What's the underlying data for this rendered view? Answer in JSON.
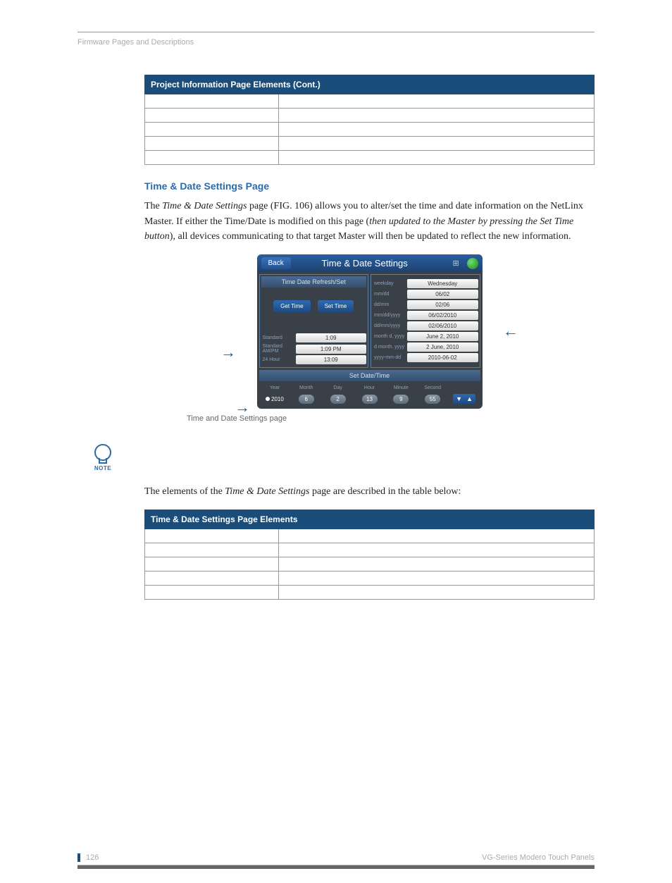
{
  "header": {
    "breadcrumb": "Firmware Pages and Descriptions"
  },
  "table1": {
    "title": "Project Information Page Elements (Cont.)",
    "rows": 5
  },
  "section": {
    "heading": "Time & Date Settings Page",
    "para_pre": "The ",
    "para_em1": "Time & Date Settings",
    "para_mid1": " page (FIG. 106) allows you to alter/set the time and date information on the NetLinx Master. If either the Time/Date is modified on this page (",
    "para_em2": "then updated to the Master by pressing the Set Time button",
    "para_mid2": "), all devices communicating to that target Master will then be updated to reflect the new information."
  },
  "panel": {
    "back": "Back",
    "title": "Time & Date Settings",
    "refresh_hdr": "Time Date Refresh/Set",
    "get_time": "Get Time",
    "set_time": "Set Time",
    "left_rows": [
      {
        "lbl": "Standard",
        "val": "1:09"
      },
      {
        "lbl": "Standard AM/PM",
        "val": "1:09 PM"
      },
      {
        "lbl": "24 Hour",
        "val": "13:09"
      }
    ],
    "right_rows": [
      {
        "lbl": "weekday",
        "val": "Wednesday"
      },
      {
        "lbl": "mm/dd",
        "val": "06/02"
      },
      {
        "lbl": "dd/mm",
        "val": "02/06"
      },
      {
        "lbl": "mm/dd/yyyy",
        "val": "06/02/2010"
      },
      {
        "lbl": "dd/mm/yyyy",
        "val": "02/06/2010"
      },
      {
        "lbl": "month d, yyyy",
        "val": "June 2, 2010"
      },
      {
        "lbl": "d month, yyyy",
        "val": "2 June, 2010"
      },
      {
        "lbl": "yyyy-mm-dd",
        "val": "2010-06-02"
      }
    ],
    "set_hdr": "Set Date/Time",
    "set_cells": [
      {
        "lbl": "Year",
        "val": "2010",
        "radio": true
      },
      {
        "lbl": "Month",
        "val": "6"
      },
      {
        "lbl": "Day",
        "val": "2"
      },
      {
        "lbl": "Hour",
        "val": "13"
      },
      {
        "lbl": "Minute",
        "val": "9"
      },
      {
        "lbl": "Second",
        "val": "55"
      }
    ]
  },
  "caption": "Time and Date Settings page",
  "note_label": "NOTE",
  "para2_pre": "The elements of the ",
  "para2_em": "Time & Date Settings",
  "para2_post": " page are described in the table below:",
  "table2": {
    "title": "Time & Date Settings Page Elements"
  },
  "footer": {
    "page": "126",
    "doc": "VG-Series Modero Touch Panels"
  },
  "colors": {
    "header_bg": "#1a4d7a",
    "heading": "#2a6ca8",
    "panel_bg": "#3a4048",
    "panel_hdr": "#1d4270"
  }
}
